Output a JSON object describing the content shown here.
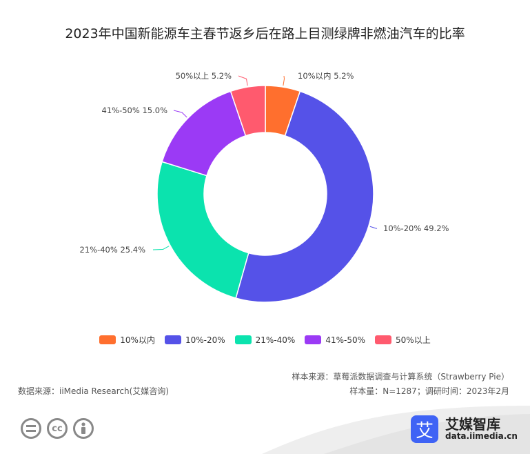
{
  "chart_data": {
    "type": "pie",
    "title": "2023年中国新能源车主春节返乡后在路上目测绿牌非燃油汽车的比率",
    "donut": true,
    "legend_position": "bottom",
    "series": [
      {
        "name": "10%以内",
        "value": 5.2,
        "label": "10%以内 5.2%",
        "color": "#ff6f2e"
      },
      {
        "name": "10%-20%",
        "value": 49.2,
        "label": "10%-20% 49.2%",
        "color": "#5552e8"
      },
      {
        "name": "21%-40%",
        "value": 25.4,
        "label": "21%-40% 25.4%",
        "color": "#0be3ae"
      },
      {
        "name": "41%-50%",
        "value": 15.0,
        "label": "41%-50% 15.0%",
        "color": "#9b3af5"
      },
      {
        "name": "50%以上",
        "value": 5.2,
        "label": "50%以上 5.2%",
        "color": "#ff5a6e"
      }
    ]
  },
  "sources": {
    "sample_source": "样本来源：草莓派数据调查与计算系统（Strawberry Pie）",
    "sample_info": "样本量：N=1287；调研时间：2023年2月",
    "data_source": "数据来源：iiMedia Research(艾媒咨询)"
  },
  "footer": {
    "icons": [
      "equals-icon",
      "cc-icon",
      "person-icon"
    ],
    "cc_glyph": "cc",
    "brand_glyph": "艾",
    "brand_name": "艾媒智库",
    "brand_url": "data.iimedia.cn"
  }
}
